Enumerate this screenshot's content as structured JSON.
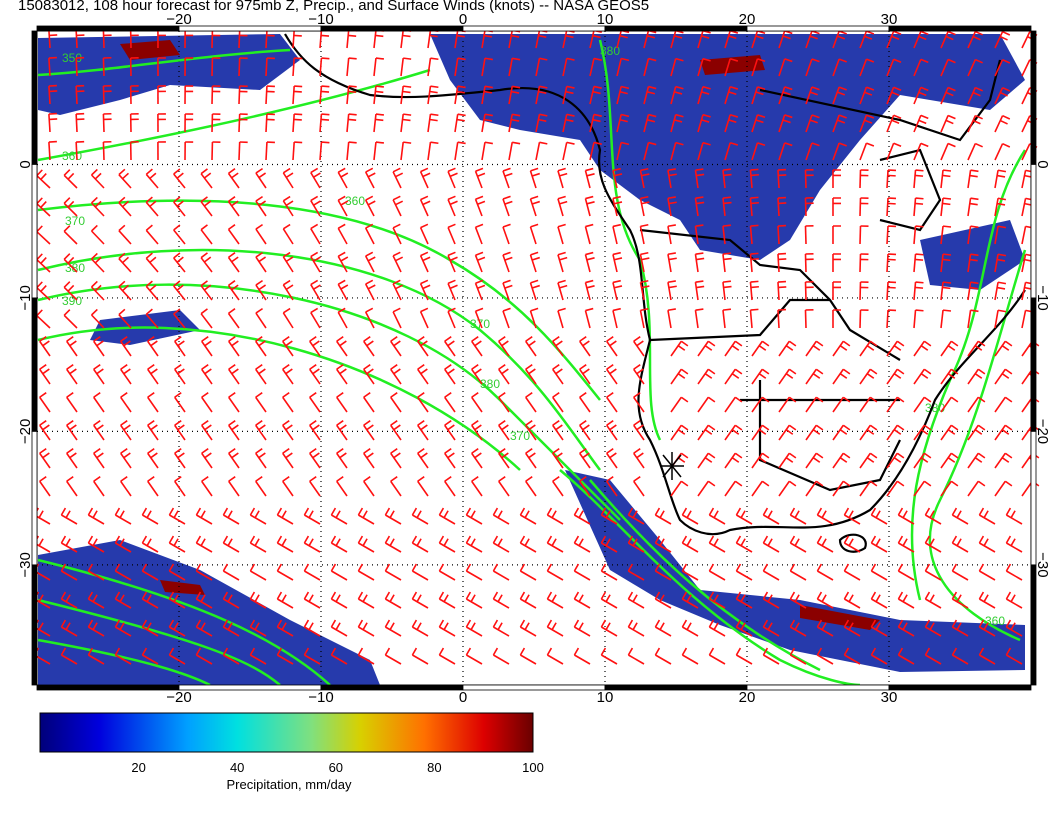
{
  "title": "15083012, 108 hour forecast for 975mb Z, Precip., and Surface Winds (knots) -- NASA GEOS5",
  "colors": {
    "frame": "#000000",
    "contour": "#22ee22",
    "wind_barb": "#ff1111",
    "coast": "#000000",
    "precip_light": "#1a2fa8",
    "precip_heavy": "#8b0000",
    "grid": "#000000"
  },
  "axes": {
    "lon_ticks": [
      "−20",
      "−10",
      "0",
      "10",
      "20",
      "30"
    ],
    "lat_ticks": [
      "0",
      "−10",
      "−20",
      "−30"
    ],
    "lon_range": [
      -30,
      40
    ],
    "lat_range": [
      -39,
      10
    ]
  },
  "contour_labels": [
    "350",
    "360",
    "370",
    "380",
    "390",
    "370",
    "380",
    "360",
    "370",
    "380",
    "360",
    "380"
  ],
  "colorbar": {
    "label": "Precipitation, mm/day",
    "min": 0,
    "max": 100,
    "ticks": [
      "20",
      "40",
      "60",
      "80",
      "100"
    ]
  },
  "icons": {
    "station_marker": "asterisk-marker-icon"
  }
}
